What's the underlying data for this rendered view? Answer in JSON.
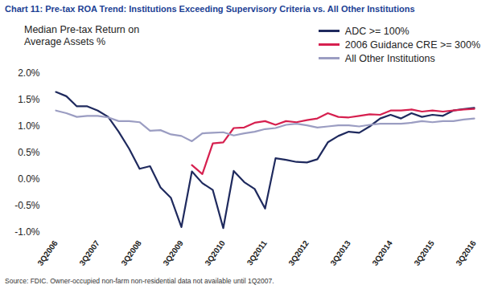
{
  "chart_data": {
    "type": "line",
    "title": "Chart 11: Pre-tax ROA Trend: Institutions Exceeding Supervisory Criteria vs. All Other Institutions",
    "ylabel": "Median Pre-tax Return on Average Assets %",
    "caption": "Source: FDIC. Owner-occupied non-farm non-residential data not available until 1Q2007.",
    "categories": [
      "3Q2006",
      null,
      null,
      null,
      "3Q2007",
      null,
      null,
      null,
      "3Q2008",
      null,
      null,
      null,
      "3Q2009",
      null,
      null,
      null,
      "3Q2010",
      null,
      null,
      null,
      "3Q2011",
      null,
      null,
      null,
      "3Q2012",
      null,
      null,
      null,
      "3Q2013",
      null,
      null,
      null,
      "3Q2014",
      null,
      null,
      null,
      "3Q2015",
      null,
      null,
      null,
      "3Q2016"
    ],
    "series": [
      {
        "name": "ADC >= 100%",
        "color": "#1f2a5e",
        "values": [
          1.65,
          1.57,
          1.38,
          1.38,
          1.3,
          1.18,
          0.9,
          0.58,
          0.2,
          0.25,
          -0.15,
          -0.35,
          -0.9,
          0.15,
          -0.07,
          -0.2,
          -0.92,
          0.16,
          -0.05,
          -0.18,
          -0.55,
          0.4,
          0.37,
          0.33,
          0.32,
          0.38,
          0.7,
          0.82,
          0.9,
          0.88,
          1.0,
          1.15,
          1.22,
          1.15,
          1.25,
          1.18,
          1.22,
          1.2,
          1.3,
          1.33,
          1.35
        ]
      },
      {
        "name": "2006 Guidance CRE >= 300%",
        "color": "#d6204f",
        "values": [
          null,
          null,
          null,
          null,
          null,
          null,
          null,
          null,
          null,
          null,
          null,
          null,
          null,
          0.27,
          0.1,
          0.68,
          0.7,
          0.97,
          0.98,
          1.07,
          1.1,
          1.03,
          1.1,
          1.08,
          1.12,
          1.15,
          1.25,
          1.18,
          1.17,
          1.2,
          1.23,
          1.22,
          1.3,
          1.3,
          1.32,
          1.28,
          1.3,
          1.28,
          1.3,
          1.32,
          1.33
        ]
      },
      {
        "name": "All Other Institutions",
        "color": "#9b9dc2",
        "values": [
          1.3,
          1.25,
          1.18,
          1.2,
          1.2,
          1.17,
          1.1,
          1.1,
          1.08,
          0.92,
          0.93,
          0.85,
          0.82,
          0.72,
          0.87,
          0.88,
          0.89,
          0.83,
          0.87,
          0.9,
          0.95,
          0.97,
          1.03,
          1.05,
          1.02,
          0.98,
          1.0,
          1.02,
          1.02,
          1.0,
          1.03,
          1.05,
          1.05,
          1.05,
          1.07,
          1.1,
          1.08,
          1.1,
          1.1,
          1.13,
          1.15
        ]
      }
    ],
    "ylim": [
      -1.0,
      2.0
    ],
    "yticks": [
      {
        "value": -1.0,
        "label": "-1.0%"
      },
      {
        "value": -0.5,
        "label": "-0.5%"
      },
      {
        "value": 0.0,
        "label": "0.0%"
      },
      {
        "value": 0.5,
        "label": "0.5%"
      },
      {
        "value": 1.0,
        "label": "1.0%"
      },
      {
        "value": 1.5,
        "label": "1.5%"
      },
      {
        "value": 2.0,
        "label": "2.0%"
      }
    ],
    "grid": false,
    "legend": "top-right"
  }
}
